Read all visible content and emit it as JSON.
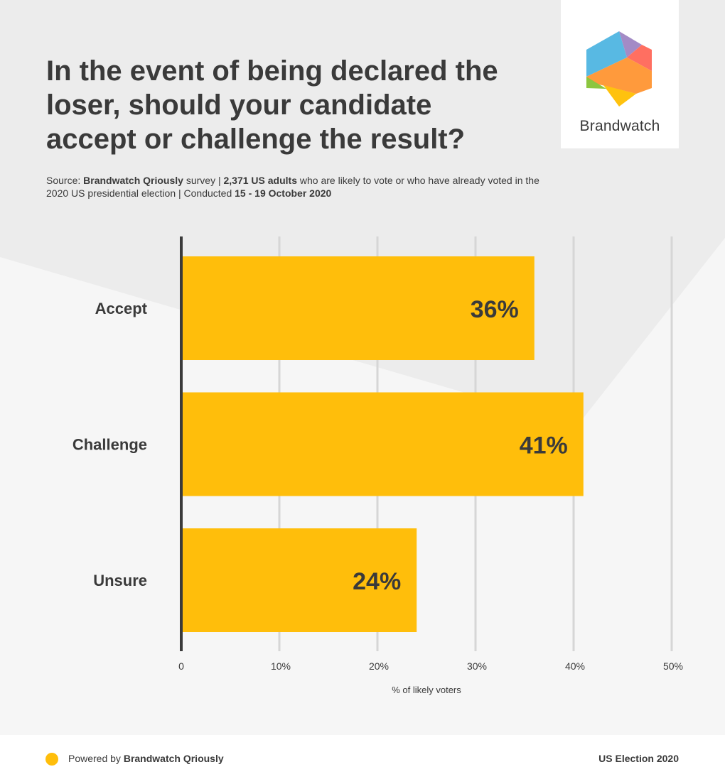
{
  "header": {
    "title": "In the event of being declared the loser, should your candidate accept or challenge the result?",
    "source": {
      "prefix": "Source: ",
      "survey_name": "Brandwatch Qriously",
      "survey_word": " survey | ",
      "sample": "2,371 US adults",
      "desc": " who are likely to vote or who have already voted in the 2020 US presidential election | Conducted ",
      "dates": "15 - 19 October 2020"
    }
  },
  "logo": {
    "name": "Brandwatch",
    "colors": [
      "#58b9e3",
      "#a38bc6",
      "#ff6f61",
      "#ff9a3c",
      "#ffc20e",
      "#8cc63f"
    ]
  },
  "chart_data": {
    "type": "bar",
    "orientation": "horizontal",
    "categories": [
      "Accept",
      "Challenge",
      "Unsure"
    ],
    "values": [
      36,
      41,
      24
    ],
    "value_labels": [
      "36%",
      "41%",
      "24%"
    ],
    "xlabel": "% of likely voters",
    "xlim": [
      0,
      50
    ],
    "xticks": [
      0,
      10,
      20,
      30,
      40,
      50
    ],
    "xtick_labels": [
      "0",
      "10%",
      "20%",
      "30%",
      "40%",
      "50%"
    ],
    "grid": true,
    "bar_color": "#ffbe0b"
  },
  "footer": {
    "powered_prefix": "Powered by ",
    "powered_brand": "Brandwatch Qriously",
    "tag": "US Election 2020"
  }
}
